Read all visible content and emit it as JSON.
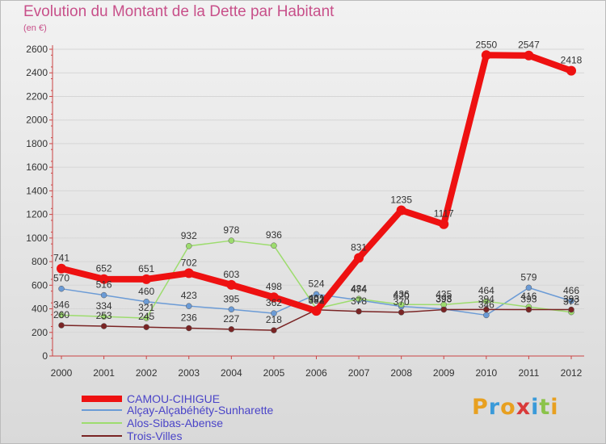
{
  "chart_data": {
    "type": "line",
    "title": "Evolution du Montant de la Dette par Habitant",
    "subtitle": "(en €)",
    "categories": [
      "2000",
      "2001",
      "2002",
      "2003",
      "2004",
      "2005",
      "2006",
      "2007",
      "2008",
      "2009",
      "2010",
      "2011",
      "2012"
    ],
    "ylim": [
      0,
      2600
    ],
    "yticks": [
      0,
      200,
      400,
      600,
      800,
      1000,
      1200,
      1400,
      1600,
      1800,
      2000,
      2200,
      2400,
      2600
    ],
    "series": [
      {
        "name": "Alçay-Alçabéhéty-Sunharette",
        "color": "#6b9bd6",
        "values": [
          570,
          516,
          460,
          423,
          395,
          362,
          524,
          474,
          420,
          398,
          346,
          579,
          466
        ]
      },
      {
        "name": "Alos-Sibas-Abense",
        "color": "#9ddc6e",
        "values": [
          346,
          334,
          321,
          932,
          978,
          936,
          401,
          484,
          436,
          435,
          464,
          416,
          372
        ]
      },
      {
        "name": "Trois-Villes",
        "color": "#7a2424",
        "values": [
          260,
          253,
          245,
          236,
          227,
          218,
          392,
          378,
          370,
          393,
          394,
          393,
          393
        ]
      },
      {
        "name": "CAMOU-CIHIGUE",
        "color": "#ee1111",
        "values": [
          741,
          652,
          651,
          702,
          603,
          498,
          382,
          831,
          1235,
          1117,
          2550,
          2547,
          2418
        ]
      }
    ],
    "legend": [
      "CAMOU-CIHIGUE",
      "Alçay-Alçabéhéty-Sunharette",
      "Alos-Sibas-Abense",
      "Trois-Villes"
    ]
  },
  "branding": {
    "letters": [
      "P",
      "r",
      "o",
      "x",
      "i",
      "t",
      "i"
    ],
    "colors": [
      "#e8a020",
      "#3a9ad9",
      "#e8a020",
      "#d93a3a",
      "#3a9ad9",
      "#8bc34a",
      "#e8a020"
    ]
  }
}
